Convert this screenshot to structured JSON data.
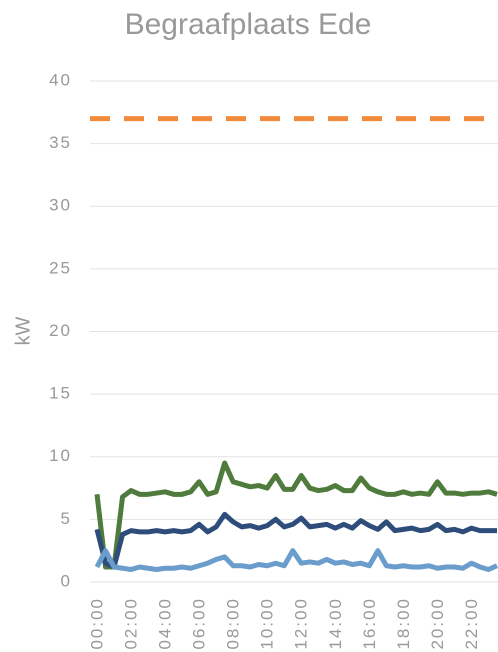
{
  "chart_data": {
    "type": "line",
    "title": "Begraafplaats Ede",
    "y_label": "kW",
    "categories": [
      "00:00",
      null,
      null,
      null,
      "02:00",
      null,
      null,
      null,
      "04:00",
      null,
      null,
      null,
      "06:00",
      null,
      null,
      null,
      "08:00",
      null,
      null,
      null,
      "10:00",
      null,
      null,
      null,
      "12:00",
      null,
      null,
      null,
      "14:00",
      null,
      null,
      null,
      "16:00",
      null,
      null,
      null,
      "18:00",
      null,
      null,
      null,
      "20:00",
      null,
      null,
      null,
      "22:00",
      null,
      null,
      null
    ],
    "series": [
      {
        "color": "#4f7b3c",
        "values": [
          7.0,
          1.2,
          1.2,
          6.8,
          7.3,
          7.0,
          7.0,
          7.1,
          7.2,
          7.0,
          7.0,
          7.2,
          8.0,
          7.0,
          7.2,
          9.5,
          8.0,
          7.8,
          7.6,
          7.7,
          7.5,
          8.5,
          7.4,
          7.4,
          8.5,
          7.5,
          7.3,
          7.4,
          7.7,
          7.3,
          7.3,
          8.3,
          7.5,
          7.2,
          7.0,
          7.0,
          7.2,
          7.0,
          7.1,
          7.0,
          8.0,
          7.1,
          7.1,
          7.0,
          7.1,
          7.1,
          7.2,
          7.0
        ]
      },
      {
        "color": "#2f4d7a",
        "values": [
          4.2,
          1.5,
          1.2,
          3.8,
          4.1,
          4.0,
          4.0,
          4.1,
          4.0,
          4.1,
          4.0,
          4.1,
          4.6,
          4.0,
          4.4,
          5.4,
          4.8,
          4.4,
          4.5,
          4.3,
          4.5,
          5.0,
          4.4,
          4.6,
          5.1,
          4.4,
          4.5,
          4.6,
          4.3,
          4.6,
          4.3,
          4.9,
          4.5,
          4.2,
          4.8,
          4.1,
          4.2,
          4.3,
          4.1,
          4.2,
          4.6,
          4.1,
          4.2,
          4.0,
          4.3,
          4.1,
          4.1,
          4.1
        ]
      },
      {
        "color": "#6a9ccc",
        "values": [
          1.2,
          2.5,
          1.2,
          1.1,
          1.0,
          1.2,
          1.1,
          1.0,
          1.1,
          1.1,
          1.2,
          1.1,
          1.3,
          1.5,
          1.8,
          2.0,
          1.3,
          1.3,
          1.2,
          1.4,
          1.3,
          1.5,
          1.3,
          2.5,
          1.5,
          1.6,
          1.5,
          1.8,
          1.5,
          1.6,
          1.4,
          1.5,
          1.3,
          2.5,
          1.3,
          1.2,
          1.3,
          1.2,
          1.2,
          1.3,
          1.1,
          1.2,
          1.2,
          1.1,
          1.5,
          1.2,
          1.0,
          1.3
        ]
      }
    ],
    "reference_line": {
      "value": 37,
      "color": "#f28a3c",
      "dashed": true
    },
    "ylim": [
      0,
      40
    ],
    "yticks": [
      0,
      5,
      10,
      15,
      20,
      25,
      30,
      35,
      40
    ],
    "grid": true
  }
}
